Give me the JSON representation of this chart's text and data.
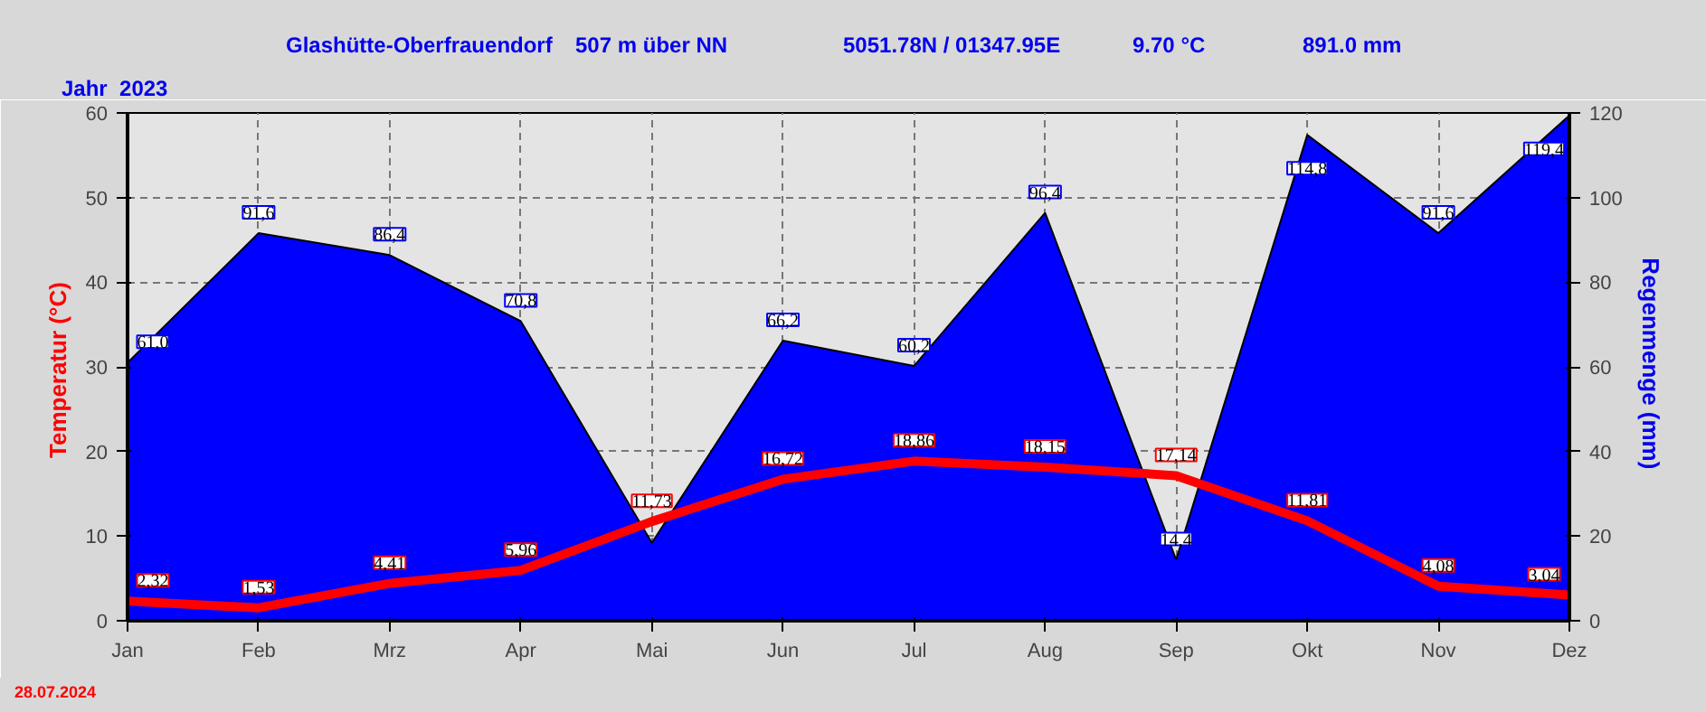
{
  "chart_data": {
    "type": "line",
    "title": "Glashütte-Oberfrauendorf",
    "annotations": [
      "507 m über NN",
      "5051.78N / 01347.95E",
      "9.70 °C",
      "891.0 mm",
      "Jahr  2023",
      "28.07.2024"
    ],
    "ylabel": "Temperatur  (°C)",
    "y2label": "Regenmenge  (mm)",
    "categories": [
      "Jan",
      "Feb",
      "Mrz",
      "Apr",
      "Mai",
      "Jun",
      "Jul",
      "Aug",
      "Sep",
      "Okt",
      "Nov",
      "Dez"
    ],
    "ylim": [
      0,
      60
    ],
    "yticks": [
      0,
      10,
      20,
      30,
      40,
      50,
      60
    ],
    "y2lim": [
      0,
      120
    ],
    "y2ticks": [
      0,
      20,
      40,
      60,
      80,
      100,
      120
    ],
    "grid": true,
    "series": [
      {
        "type": "area",
        "axis": "y2",
        "color": "#0000ff",
        "values": [
          61.0,
          91.6,
          86.4,
          70.8,
          18.4,
          66.2,
          60.2,
          96.4,
          14.4,
          114.8,
          91.6,
          119.4
        ],
        "value_labels": [
          "61,0",
          "91,6",
          "86,4",
          "70,8",
          null,
          "66,2",
          "60,2",
          "96,4",
          "14,4",
          "114,8",
          "91,6",
          "119,4"
        ]
      },
      {
        "color": "#ff0000",
        "values": [
          2.32,
          1.53,
          4.41,
          5.96,
          11.73,
          16.72,
          18.86,
          18.15,
          17.14,
          11.81,
          4.08,
          3.04
        ],
        "value_labels": [
          "2,32",
          "1,53",
          "4,41",
          "5,96",
          "11,73",
          "16,72",
          "18,86",
          "18,15",
          "17,14",
          "11,81",
          "4,08",
          "3,04"
        ]
      }
    ]
  }
}
